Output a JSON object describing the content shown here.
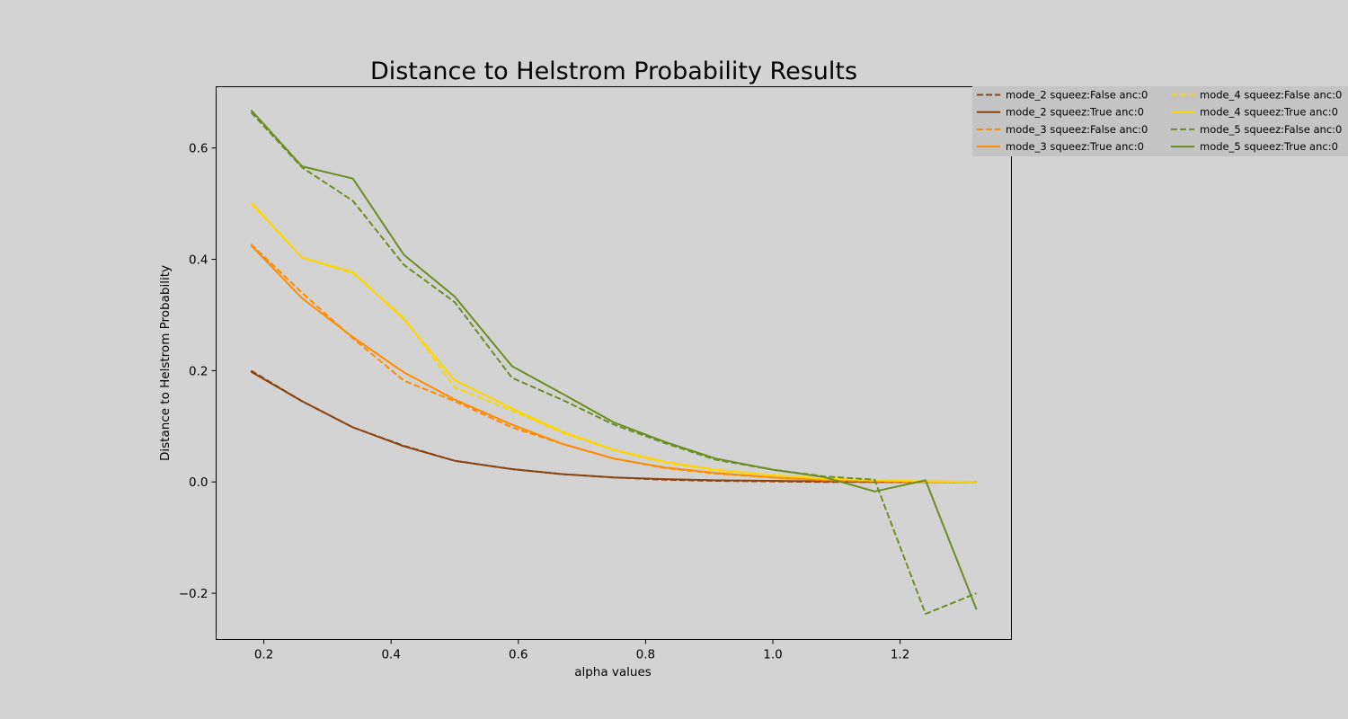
{
  "chart_data": {
    "type": "line",
    "title": "Distance to Helstrom Probability Results",
    "xlabel": "alpha values",
    "ylabel": "Distance to Helstrom Probability",
    "xlim": [
      0.125,
      1.375
    ],
    "ylim": [
      -0.283,
      0.71
    ],
    "xticks": [
      0.2,
      0.4,
      0.6,
      0.8,
      1.0,
      1.2
    ],
    "xtick_labels": [
      "0.2",
      "0.4",
      "0.6",
      "0.8",
      "1.0",
      "1.2"
    ],
    "yticks": [
      -0.2,
      0.0,
      0.2,
      0.4,
      0.6
    ],
    "ytick_labels": [
      "−0.2",
      "0.0",
      "0.2",
      "0.4",
      "0.6"
    ],
    "grid": false,
    "legend": "top-right, outside plot, 2 columns",
    "x": [
      0.18,
      0.26,
      0.34,
      0.42,
      0.5,
      0.59,
      0.67,
      0.75,
      0.83,
      0.91,
      1.0,
      1.08,
      1.16,
      1.24,
      1.32
    ],
    "series": [
      {
        "name": "mode_2 squeez:False anc:0",
        "color": "#8b4513",
        "dashed": true,
        "values": [
          0.2,
          0.145,
          0.098,
          0.065,
          0.038,
          0.023,
          0.014,
          0.008,
          0.004,
          0.002,
          0.001,
          0.0,
          0.0,
          0.0,
          0.0
        ]
      },
      {
        "name": "mode_2 squeez:True anc:0",
        "color": "#8b4513",
        "dashed": false,
        "values": [
          0.198,
          0.145,
          0.098,
          0.064,
          0.038,
          0.023,
          0.014,
          0.008,
          0.005,
          0.003,
          0.002,
          0.001,
          0.0,
          0.0,
          0.0
        ]
      },
      {
        "name": "mode_3 squeez:False anc:0",
        "color": "#ff8c00",
        "dashed": true,
        "values": [
          0.427,
          0.34,
          0.258,
          0.182,
          0.145,
          0.098,
          0.068,
          0.042,
          0.025,
          0.015,
          0.008,
          0.003,
          0.001,
          0.0,
          0.0
        ]
      },
      {
        "name": "mode_3 squeez:True anc:0",
        "color": "#ff8c00",
        "dashed": false,
        "values": [
          0.425,
          0.33,
          0.26,
          0.197,
          0.148,
          0.103,
          0.068,
          0.042,
          0.026,
          0.016,
          0.008,
          0.004,
          0.002,
          0.001,
          0.0
        ]
      },
      {
        "name": "mode_4 squeez:False anc:0",
        "color": "#ffd700",
        "dashed": true,
        "values": [
          0.5,
          0.403,
          0.375,
          0.295,
          0.17,
          0.128,
          0.088,
          0.057,
          0.035,
          0.021,
          0.012,
          0.006,
          0.003,
          0.001,
          0.0
        ]
      },
      {
        "name": "mode_4 squeez:True anc:0",
        "color": "#ffd700",
        "dashed": false,
        "values": [
          0.502,
          0.403,
          0.377,
          0.292,
          0.183,
          0.132,
          0.09,
          0.058,
          0.036,
          0.022,
          0.012,
          0.006,
          0.003,
          0.001,
          0.0
        ]
      },
      {
        "name": "mode_5 squeez:False anc:0",
        "color": "#6b8e23",
        "dashed": true,
        "values": [
          0.664,
          0.565,
          0.505,
          0.39,
          0.323,
          0.187,
          0.147,
          0.103,
          0.07,
          0.04,
          0.022,
          0.01,
          0.004,
          -0.237,
          -0.2
        ]
      },
      {
        "name": "mode_5 squeez:True anc:0",
        "color": "#6b8e23",
        "dashed": false,
        "values": [
          0.668,
          0.567,
          0.545,
          0.408,
          0.333,
          0.208,
          0.158,
          0.107,
          0.072,
          0.042,
          0.022,
          0.009,
          -0.017,
          0.003,
          -0.229
        ]
      }
    ]
  }
}
